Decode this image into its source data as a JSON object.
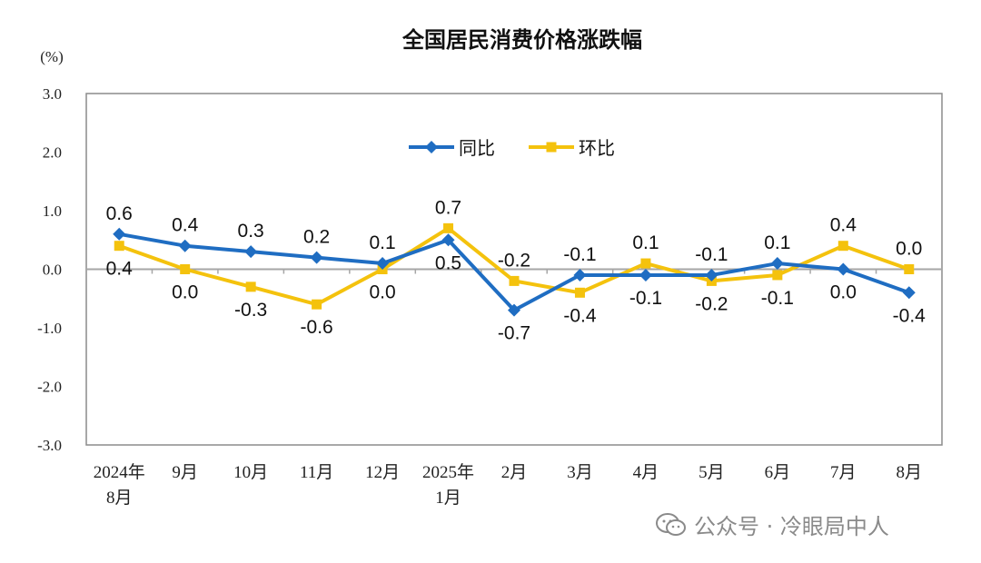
{
  "chart_data": {
    "type": "line",
    "title": "全国居民消费价格涨跌幅",
    "ylabel": "(%)",
    "xlabel": "",
    "categories": [
      [
        "2024年",
        "8月"
      ],
      [
        "9月"
      ],
      [
        "10月"
      ],
      [
        "11月"
      ],
      [
        "12月"
      ],
      [
        "2025年",
        "1月"
      ],
      [
        "2月"
      ],
      [
        "3月"
      ],
      [
        "4月"
      ],
      [
        "5月"
      ],
      [
        "6月"
      ],
      [
        "7月"
      ],
      [
        "8月"
      ]
    ],
    "ylim": [
      -3.0,
      3.0
    ],
    "yticks": [
      "3.0",
      "2.0",
      "1.0",
      "0.0",
      "-1.0",
      "-2.0",
      "-3.0"
    ],
    "ytick_values": [
      3,
      2,
      1,
      0,
      -1,
      -2,
      -3
    ],
    "grid": false,
    "legend_position": "top-center",
    "series": [
      {
        "name": "同比",
        "color": "#1f6dc2",
        "marker": "diamond",
        "values": [
          0.6,
          0.4,
          0.3,
          0.2,
          0.1,
          0.5,
          -0.7,
          -0.1,
          -0.1,
          -0.1,
          0.1,
          0.0,
          -0.4
        ],
        "labels": [
          "0.6",
          "0.4",
          "0.3",
          "0.2",
          "0.1",
          "0.5",
          "-0.7",
          "-0.1",
          "-0.1",
          "-0.1",
          "0.1",
          "0.0",
          "-0.4"
        ],
        "label_side": [
          "above",
          "above",
          "above",
          "above",
          "above",
          "below",
          "below",
          "above",
          "below",
          "above",
          "above",
          "below",
          "below"
        ]
      },
      {
        "name": "环比",
        "color": "#f4c20d",
        "marker": "square",
        "values": [
          0.4,
          0.0,
          -0.3,
          -0.6,
          0.0,
          0.7,
          -0.2,
          -0.4,
          0.1,
          -0.2,
          -0.1,
          0.4,
          0.0
        ],
        "labels": [
          "0.4",
          "0.0",
          "-0.3",
          "-0.6",
          "0.0",
          "0.7",
          "-0.2",
          "-0.4",
          "0.1",
          "-0.2",
          "-0.1",
          "0.4",
          "0.0"
        ],
        "label_side": [
          "below",
          "below",
          "below",
          "below",
          "below",
          "above",
          "above",
          "below",
          "above",
          "below",
          "below",
          "above",
          "above"
        ]
      }
    ]
  },
  "watermark": {
    "text": "公众号 · 冷眼局中人",
    "icon": "wechat-icon"
  }
}
